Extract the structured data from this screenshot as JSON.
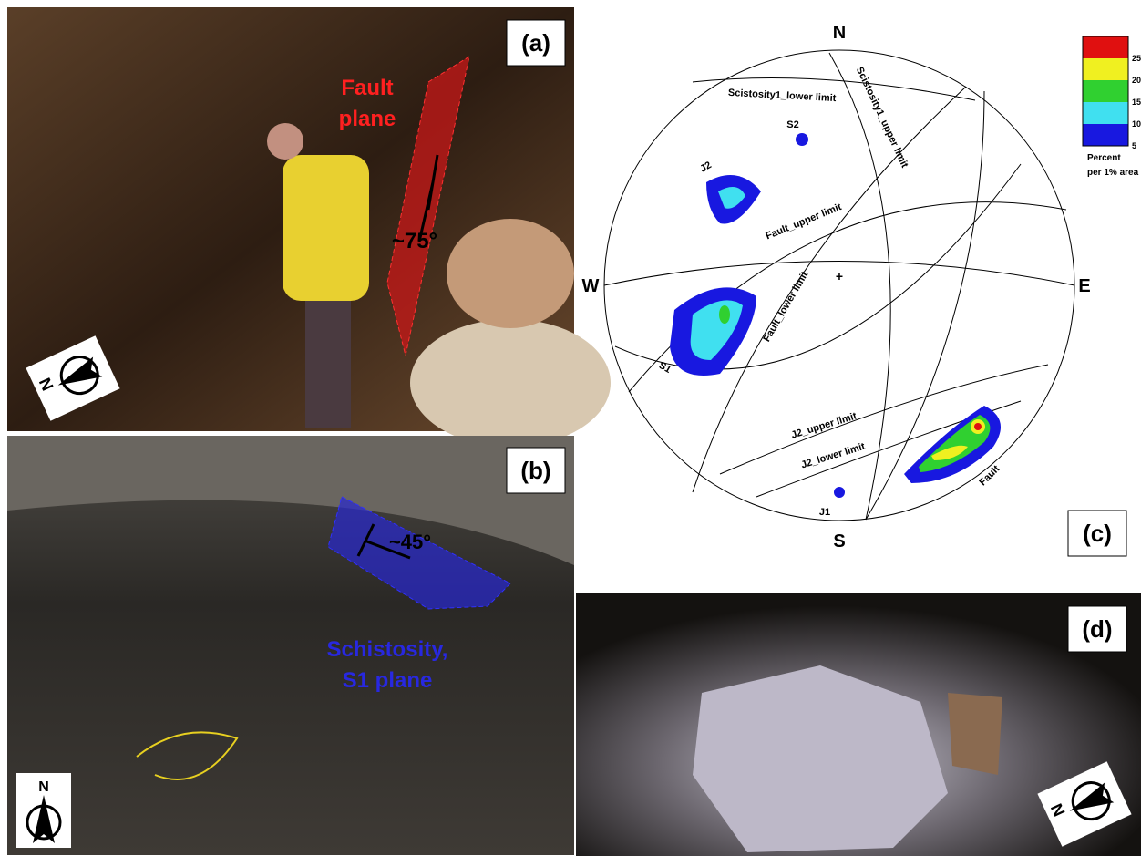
{
  "panels": {
    "a": {
      "label": "(a)",
      "annotations": [
        "Fault",
        "plane",
        "~75°"
      ],
      "north": "N"
    },
    "b": {
      "label": "(b)",
      "annotations": [
        "~45°",
        "Schistosity,",
        "S1  plane"
      ],
      "north": "N"
    },
    "c": {
      "label": "(c)"
    },
    "d": {
      "label": "(d)",
      "north": "N"
    }
  },
  "stereonet": {
    "directions": {
      "north": "N",
      "south": "S",
      "east": "E",
      "west": "W"
    },
    "labels": [
      "Scistosity1_lower limit",
      "Scistosity1_upper limit",
      "Fault_upper limit",
      "Fault_lower limit",
      "S1",
      "J2_upper limit",
      "J2_lower limit",
      "Fault",
      "S2",
      "J2",
      "J1"
    ],
    "legend": {
      "ticks": [
        25,
        20,
        15,
        10,
        5
      ],
      "title": "Percent",
      "subtitle": "per 1% area"
    }
  }
}
